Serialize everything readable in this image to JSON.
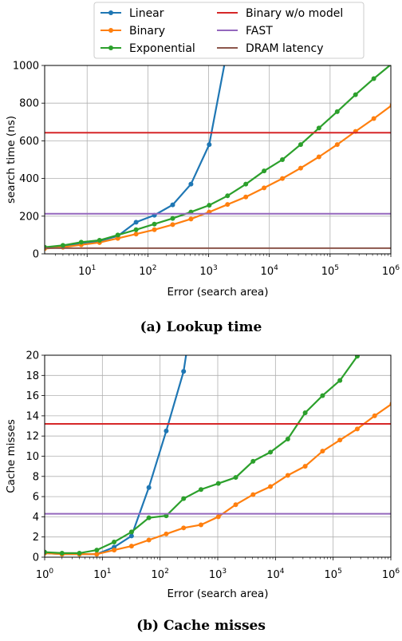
{
  "legend": {
    "entries": [
      {
        "label": "Linear",
        "color": "#1f77b4",
        "marker": true
      },
      {
        "label": "Binary",
        "color": "#ff7f0e",
        "marker": true
      },
      {
        "label": "Exponential",
        "color": "#2ca02c",
        "marker": true
      },
      {
        "label": "Binary w/o model",
        "color": "#d62728",
        "marker": false
      },
      {
        "label": "FAST",
        "color": "#9467bd",
        "marker": false
      },
      {
        "label": "DRAM latency",
        "color": "#8c564b",
        "marker": false
      }
    ]
  },
  "chart_data": [
    {
      "type": "line",
      "caption": "(a) Lookup time",
      "xlabel": "Error (search area)",
      "ylabel": "search time (ns)",
      "x_scale": "log",
      "xlim": [
        2,
        1000000
      ],
      "ylim": [
        0,
        1000
      ],
      "x_ticks": [
        10,
        100,
        1000,
        10000,
        100000,
        1000000
      ],
      "x_tick_labels": [
        [
          "10",
          "1"
        ],
        [
          "10",
          "2"
        ],
        [
          "10",
          "3"
        ],
        [
          "10",
          "4"
        ],
        [
          "10",
          "5"
        ],
        [
          "10",
          "6"
        ]
      ],
      "y_ticks": [
        0,
        200,
        400,
        600,
        800,
        1000
      ],
      "y_tick_labels": [
        "0",
        "200",
        "400",
        "600",
        "800",
        "1000"
      ],
      "grid": true,
      "series": [
        {
          "name": "Linear",
          "color": "#1f77b4",
          "x": [
            2,
            4,
            8,
            16,
            32,
            64,
            128,
            256,
            512,
            1024,
            2048
          ],
          "y": [
            30,
            38,
            55,
            68,
            95,
            168,
            205,
            260,
            370,
            580,
            1090
          ]
        },
        {
          "name": "Binary",
          "color": "#ff7f0e",
          "x": [
            2,
            4,
            8,
            16,
            32,
            64,
            128,
            256,
            512,
            1024,
            2048,
            4096,
            8192,
            16384,
            32768,
            65536,
            131072,
            262144,
            524288,
            1048576
          ],
          "y": [
            28,
            35,
            48,
            60,
            82,
            105,
            128,
            155,
            185,
            222,
            262,
            302,
            350,
            400,
            455,
            515,
            580,
            650,
            718,
            790
          ]
        },
        {
          "name": "Exponential",
          "color": "#2ca02c",
          "x": [
            2,
            4,
            8,
            16,
            32,
            64,
            128,
            256,
            512,
            1024,
            2048,
            4096,
            8192,
            16384,
            32768,
            65536,
            131072,
            262144,
            524288,
            1048576
          ],
          "y": [
            35,
            45,
            62,
            72,
            100,
            128,
            158,
            188,
            222,
            258,
            308,
            370,
            440,
            500,
            580,
            668,
            755,
            845,
            930,
            1010
          ]
        },
        {
          "name": "Binary w/o model",
          "color": "#d62728",
          "constant": 643
        },
        {
          "name": "FAST",
          "color": "#9467bd",
          "constant": 213
        },
        {
          "name": "DRAM latency",
          "color": "#8c564b",
          "constant": 30
        }
      ]
    },
    {
      "type": "line",
      "caption": "(b) Cache misses",
      "xlabel": "Error (search area)",
      "ylabel": "Cache misses",
      "x_scale": "log",
      "xlim": [
        1,
        1000000
      ],
      "ylim": [
        0,
        20
      ],
      "x_ticks": [
        1,
        10,
        100,
        1000,
        10000,
        100000,
        1000000
      ],
      "x_tick_labels": [
        [
          "10",
          "0"
        ],
        [
          "10",
          "1"
        ],
        [
          "10",
          "2"
        ],
        [
          "10",
          "3"
        ],
        [
          "10",
          "4"
        ],
        [
          "10",
          "5"
        ],
        [
          "10",
          "6"
        ]
      ],
      "y_ticks": [
        0,
        2,
        4,
        6,
        8,
        10,
        12,
        14,
        16,
        18,
        20
      ],
      "y_tick_labels": [
        "0",
        "2",
        "4",
        "6",
        "8",
        "10",
        "12",
        "14",
        "16",
        "18",
        "20"
      ],
      "grid": true,
      "series": [
        {
          "name": "Linear",
          "color": "#1f77b4",
          "x": [
            1,
            2,
            4,
            8,
            16,
            32,
            64,
            128,
            256,
            300
          ],
          "y": [
            0.4,
            0.3,
            0.3,
            0.3,
            1.0,
            2.1,
            6.9,
            12.5,
            18.4,
            21
          ]
        },
        {
          "name": "Binary",
          "color": "#ff7f0e",
          "x": [
            1,
            2,
            4,
            8,
            16,
            32,
            64,
            128,
            256,
            512,
            1024,
            2048,
            4096,
            8192,
            16384,
            32768,
            65536,
            131072,
            262144,
            524288,
            1048576
          ],
          "y": [
            0.4,
            0.3,
            0.3,
            0.3,
            0.7,
            1.1,
            1.7,
            2.3,
            2.9,
            3.2,
            4.0,
            5.2,
            6.2,
            7.0,
            8.1,
            9.0,
            10.5,
            11.6,
            12.7,
            14.0,
            15.2
          ]
        },
        {
          "name": "Exponential",
          "color": "#2ca02c",
          "x": [
            1,
            2,
            4,
            8,
            16,
            32,
            64,
            128,
            256,
            512,
            1024,
            2048,
            4096,
            8192,
            16384,
            32768,
            65536,
            131072,
            262144,
            300000
          ],
          "y": [
            0.5,
            0.4,
            0.4,
            0.7,
            1.5,
            2.5,
            3.9,
            4.1,
            5.8,
            6.7,
            7.3,
            7.9,
            9.5,
            10.4,
            11.7,
            14.3,
            16.0,
            17.5,
            19.9,
            21
          ]
        },
        {
          "name": "Binary w/o model",
          "color": "#d62728",
          "constant": 13.2
        },
        {
          "name": "FAST",
          "color": "#9467bd",
          "constant": 4.3
        }
      ]
    }
  ]
}
